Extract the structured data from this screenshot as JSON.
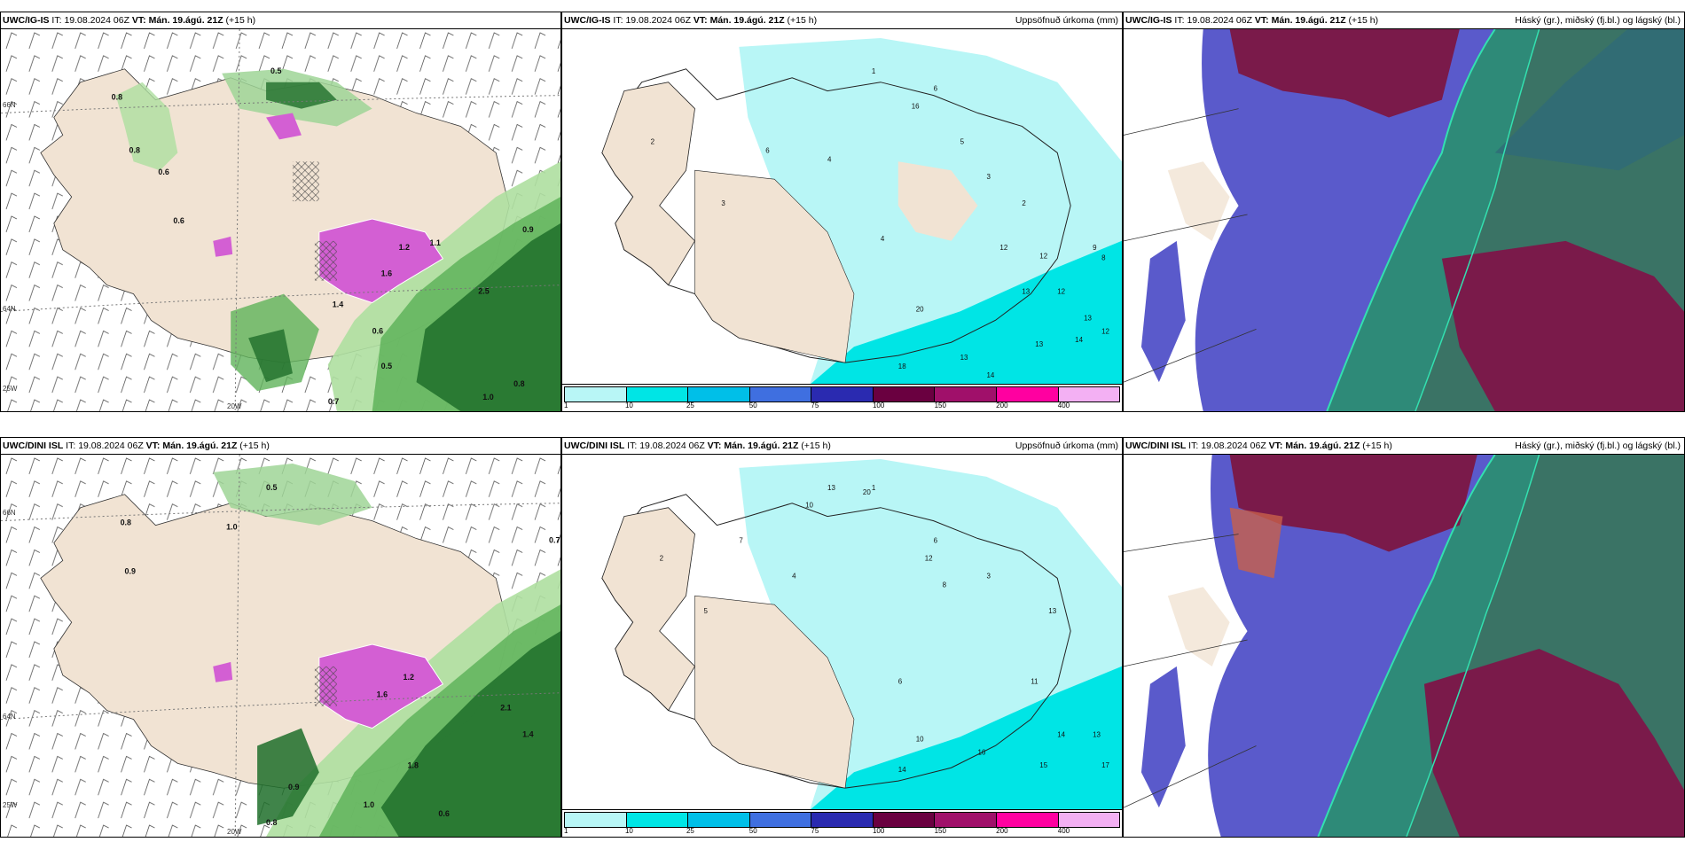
{
  "rows": [
    {
      "model": "UWC/IG-IS",
      "it_label": "IT:",
      "it_value": "19.08.2024 06Z",
      "vt_label": "VT:",
      "vt_value": "Mán. 19.ágú. 21Z",
      "lead": "(+15 h)"
    },
    {
      "model": "UWC/DINI ISL",
      "it_label": "IT:",
      "it_value": "19.08.2024 06Z",
      "vt_label": "VT:",
      "vt_value": "Mán. 19.ágú. 21Z",
      "lead": "(+15 h)"
    }
  ],
  "panel_titles": {
    "precip": "Uppsöfnuð úrkoma (mm)",
    "cloud": "Háský (gr.), miðský (fj.bl.) og lágský (bl.)"
  },
  "axis_labels": {
    "lat66": "66N",
    "lat64": "64N",
    "lon25": "25W",
    "lon20": "20W"
  },
  "legend": {
    "colors": [
      "#b8f6f6",
      "#00e5e5",
      "#00bfe8",
      "#3f6fe0",
      "#2a2ab0",
      "#6a0040",
      "#a0106a",
      "#ff00a0",
      "#f3b0f3"
    ],
    "ticks": [
      "1",
      "10",
      "25",
      "50",
      "75",
      "100",
      "150",
      "200",
      "400"
    ]
  },
  "precip_values_top": [
    "1",
    "2",
    "6",
    "4",
    "3",
    "16",
    "5",
    "2",
    "3",
    "12",
    "12",
    "13",
    "12",
    "9",
    "8",
    "13",
    "14",
    "12",
    "13",
    "18",
    "13",
    "14",
    "20",
    "4",
    "6"
  ],
  "precip_values_bottom": [
    "1",
    "2",
    "5",
    "7",
    "13",
    "10",
    "20",
    "6",
    "8",
    "12",
    "3",
    "13",
    "11",
    "14",
    "16",
    "15",
    "17",
    "13",
    "10",
    "14",
    "4",
    "6"
  ],
  "rain_values_top": [
    "0.8",
    "0.5",
    "0.6",
    "0.8",
    "0.6",
    "1.6",
    "1.2",
    "1.1",
    "2.5",
    "0.9",
    "1.0",
    "0.5",
    "0.7",
    "1.4",
    "0.6",
    "0.8"
  ],
  "rain_values_bottom": [
    "0.8",
    "0.5",
    "0.9",
    "1.0",
    "1.6",
    "1.2",
    "2.1",
    "1.4",
    "0.7",
    "1.8",
    "0.6",
    "1.0",
    "0.9",
    "0.8"
  ]
}
